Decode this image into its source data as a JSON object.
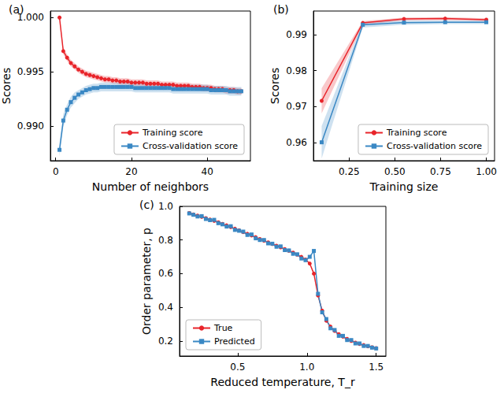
{
  "chart_data": [
    {
      "type": "line",
      "title": "(a)",
      "x_label": "Number of neighbors",
      "y_label": "Scores",
      "xlim": [
        -1.4,
        51.4
      ],
      "ylim": [
        0.9868,
        1.0006
      ],
      "xticks": [
        0,
        20,
        40
      ],
      "yticks": [
        {
          "value": 0.99,
          "label": "0.990"
        },
        {
          "value": 0.995,
          "label": "0.995"
        },
        {
          "value": 1.0,
          "label": "1.000"
        }
      ],
      "grid": false,
      "legend": "lower right",
      "x": [
        1,
        2,
        3,
        4,
        5,
        6,
        7,
        8,
        9,
        10,
        11,
        12,
        13,
        14,
        15,
        16,
        17,
        18,
        19,
        20,
        21,
        22,
        23,
        24,
        25,
        26,
        27,
        28,
        29,
        30,
        31,
        32,
        33,
        34,
        35,
        36,
        37,
        38,
        39,
        40,
        41,
        42,
        43,
        44,
        45,
        46,
        47,
        48,
        49
      ],
      "series": [
        {
          "name": "Training score",
          "color": "#e8242a",
          "marker": "circle",
          "line_style": "solid",
          "values": [
            1.0,
            0.9969,
            0.9963,
            0.9958,
            0.9955,
            0.9952,
            0.995,
            0.9948,
            0.9947,
            0.9946,
            0.9945,
            0.9944,
            0.9943,
            0.9943,
            0.9942,
            0.9942,
            0.9941,
            0.9941,
            0.9941,
            0.994,
            0.994,
            0.994,
            0.994,
            0.9939,
            0.9939,
            0.9939,
            0.9939,
            0.9938,
            0.9938,
            0.9938,
            0.9938,
            0.9937,
            0.9937,
            0.9937,
            0.9937,
            0.9936,
            0.9936,
            0.9936,
            0.9935,
            0.9935,
            0.9935,
            0.9934,
            0.9934,
            0.9934,
            0.9933,
            0.9933,
            0.9933,
            0.9932,
            0.9932
          ],
          "std": [
            0.0,
            0.0003,
            0.0003,
            0.0003,
            0.0003,
            0.0003,
            0.0003,
            0.0003,
            0.0003,
            0.0003,
            0.0003,
            0.0003,
            0.0003,
            0.0003,
            0.0003,
            0.0003,
            0.0003,
            0.0003,
            0.0003,
            0.0003,
            0.0003,
            0.0003,
            0.0003,
            0.0003,
            0.0003,
            0.0003,
            0.0003,
            0.0003,
            0.0003,
            0.0003,
            0.0003,
            0.0003,
            0.0003,
            0.0003,
            0.0003,
            0.0003,
            0.0003,
            0.0003,
            0.0003,
            0.0003,
            0.0003,
            0.0003,
            0.0003,
            0.0003,
            0.0003,
            0.0003,
            0.0003,
            0.0003,
            0.0003
          ]
        },
        {
          "name": "Cross-validation score",
          "color": "#3a88c4",
          "marker": "square",
          "line_style": "solid",
          "values": [
            0.9878,
            0.9905,
            0.9915,
            0.9922,
            0.9926,
            0.9929,
            0.9931,
            0.9933,
            0.9934,
            0.9935,
            0.9935,
            0.9936,
            0.9936,
            0.9936,
            0.9936,
            0.9936,
            0.9936,
            0.9936,
            0.9936,
            0.9936,
            0.9935,
            0.9935,
            0.9935,
            0.9935,
            0.9935,
            0.9935,
            0.9935,
            0.9935,
            0.9935,
            0.9935,
            0.9934,
            0.9934,
            0.9934,
            0.9934,
            0.9934,
            0.9934,
            0.9934,
            0.9934,
            0.9934,
            0.9934,
            0.9933,
            0.9933,
            0.9933,
            0.9933,
            0.9933,
            0.9932,
            0.9932,
            0.9932,
            0.9932
          ],
          "std": [
            0.0006,
            0.0006,
            0.0005,
            0.0005,
            0.0005,
            0.0004,
            0.0004,
            0.0004,
            0.0004,
            0.0004,
            0.0004,
            0.0004,
            0.0004,
            0.0004,
            0.0004,
            0.0004,
            0.0004,
            0.0004,
            0.0004,
            0.0004,
            0.0004,
            0.0004,
            0.0004,
            0.0004,
            0.0004,
            0.0004,
            0.0004,
            0.0004,
            0.0004,
            0.0004,
            0.0004,
            0.0004,
            0.0004,
            0.0004,
            0.0004,
            0.0004,
            0.0004,
            0.0004,
            0.0004,
            0.0004,
            0.0004,
            0.0004,
            0.0004,
            0.0004,
            0.0004,
            0.0004,
            0.0004,
            0.0004,
            0.0004
          ]
        }
      ]
    },
    {
      "type": "line",
      "title": "(b)",
      "x_label": "Training size",
      "y_label": "Scores",
      "xlim": [
        0.055,
        1.045
      ],
      "ylim": [
        0.955,
        0.9965
      ],
      "xticks": [
        0.25,
        {
          "value": 0.5,
          "label": "0.50"
        },
        0.75,
        {
          "value": 1.0,
          "label": "1.00"
        }
      ],
      "yticks": [
        0.96,
        0.97,
        0.98,
        0.99
      ],
      "grid": false,
      "legend": "lower right",
      "x": [
        0.1,
        0.325,
        0.55,
        0.775,
        1.0
      ],
      "series": [
        {
          "name": "Training score",
          "color": "#e8242a",
          "marker": "circle",
          "line_style": "solid",
          "values": [
            0.9716,
            0.9932,
            0.9943,
            0.9944,
            0.9941
          ],
          "std": [
            0.0035,
            0.0005,
            0.0004,
            0.0004,
            0.0004
          ]
        },
        {
          "name": "Cross-validation score",
          "color": "#3a88c4",
          "marker": "square",
          "line_style": "solid",
          "values": [
            0.9601,
            0.9927,
            0.9933,
            0.9934,
            0.9934
          ],
          "std": [
            0.0045,
            0.0008,
            0.0006,
            0.0005,
            0.0005
          ]
        }
      ]
    },
    {
      "type": "line",
      "title": "(c)",
      "x_label": "Reduced temperature, T_r",
      "y_label": "Order parameter, p",
      "xlim": [
        0.08,
        1.57
      ],
      "ylim": [
        0.11,
        1.0
      ],
      "xticks": [
        0.5,
        {
          "value": 1.0,
          "label": "1.0"
        },
        1.5
      ],
      "yticks": [
        0.2,
        0.4,
        0.6,
        0.8,
        {
          "value": 1.0,
          "label": "1.0"
        }
      ],
      "grid": false,
      "legend": "lower left",
      "x": [
        0.15,
        0.18,
        0.21,
        0.24,
        0.27,
        0.3,
        0.33,
        0.36,
        0.39,
        0.42,
        0.45,
        0.48,
        0.51,
        0.54,
        0.57,
        0.6,
        0.63,
        0.66,
        0.69,
        0.72,
        0.75,
        0.78,
        0.81,
        0.84,
        0.87,
        0.9,
        0.93,
        0.96,
        0.99,
        1.02,
        1.05,
        1.08,
        1.11,
        1.14,
        1.17,
        1.2,
        1.23,
        1.26,
        1.29,
        1.32,
        1.35,
        1.38,
        1.41,
        1.44,
        1.47,
        1.5
      ],
      "series": [
        {
          "name": "True",
          "color": "#e8242a",
          "marker": "circle",
          "line_style": "solid",
          "values": [
            0.96,
            0.952,
            0.945,
            0.938,
            0.93,
            0.922,
            0.914,
            0.905,
            0.896,
            0.887,
            0.877,
            0.867,
            0.857,
            0.847,
            0.837,
            0.827,
            0.817,
            0.806,
            0.796,
            0.786,
            0.776,
            0.766,
            0.756,
            0.746,
            0.736,
            0.725,
            0.713,
            0.7,
            0.684,
            0.66,
            0.6,
            0.47,
            0.38,
            0.32,
            0.285,
            0.26,
            0.24,
            0.225,
            0.212,
            0.2,
            0.19,
            0.182,
            0.175,
            0.168,
            0.162,
            0.157
          ]
        },
        {
          "name": "Predicted",
          "color": "#3a88c4",
          "marker": "square",
          "line_style": "solid",
          "values": [
            0.958,
            0.95,
            0.94,
            0.942,
            0.925,
            0.918,
            0.92,
            0.9,
            0.893,
            0.88,
            0.882,
            0.86,
            0.855,
            0.85,
            0.83,
            0.833,
            0.81,
            0.8,
            0.8,
            0.78,
            0.778,
            0.76,
            0.762,
            0.74,
            0.738,
            0.718,
            0.715,
            0.69,
            0.68,
            0.7,
            0.735,
            0.48,
            0.37,
            0.33,
            0.275,
            0.265,
            0.23,
            0.23,
            0.205,
            0.205,
            0.185,
            0.185,
            0.17,
            0.17,
            0.16,
            0.155
          ]
        }
      ]
    }
  ]
}
